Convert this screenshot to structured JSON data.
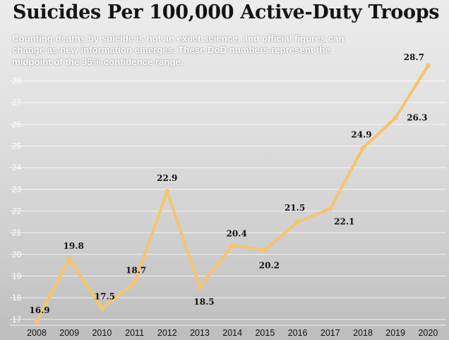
{
  "title": "Suicides Per 100,000 Active-Duty Troops",
  "subtitle": "Counting deaths by suicide is not an exact science, and official figures can change as new information emerges. These DoD numbers represent the midpoint of the 95%-confidence range.",
  "colors": {
    "line": "#f7c46c",
    "grid": "#ffffff",
    "text": "#111111"
  },
  "chart_data": {
    "type": "line",
    "title": "Suicides Per 100,000 Active-Duty Troops",
    "x": [
      2008,
      2009,
      2010,
      2011,
      2012,
      2013,
      2014,
      2015,
      2016,
      2017,
      2018,
      2019,
      2020
    ],
    "values": [
      16.9,
      19.8,
      17.5,
      18.7,
      22.9,
      18.5,
      20.4,
      20.2,
      21.5,
      22.1,
      24.9,
      26.3,
      28.7
    ],
    "data_labels": [
      "16.9",
      "19.8",
      "17.5",
      "18.7",
      "22.9",
      "18.5",
      "20.4",
      "20.2",
      "21.5",
      "22.1",
      "24.9",
      "26.3",
      "28.7"
    ],
    "yticks": [
      17,
      18,
      19,
      20,
      21,
      22,
      23,
      24,
      25,
      26,
      27,
      28
    ],
    "ylim": [
      16.8,
      28.7
    ],
    "xlabel": "",
    "ylabel": "",
    "grid": true,
    "legend": "none"
  }
}
